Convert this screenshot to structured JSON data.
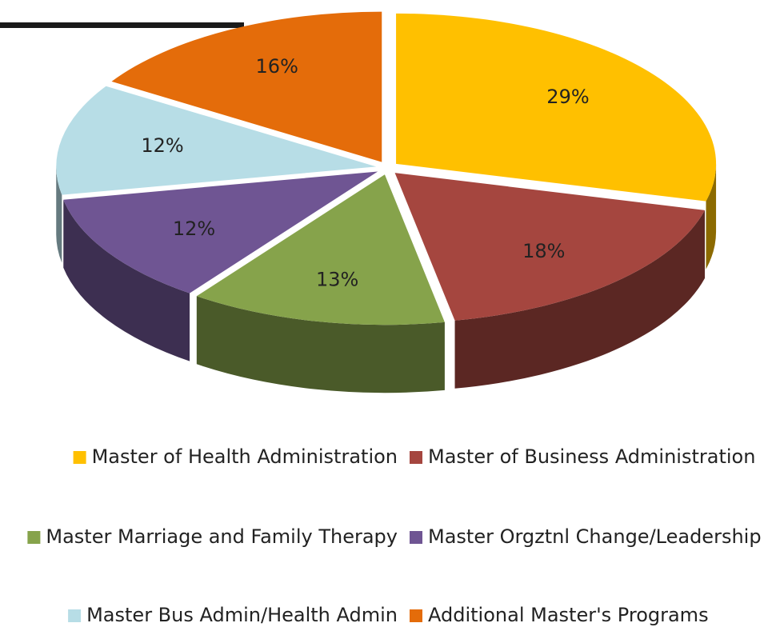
{
  "chart_data": {
    "type": "pie",
    "categories": [
      "Master of Health Administration",
      "Master of Business Administration",
      "Master Marriage and Family Therapy",
      "Master Orgztnl Change/Leadership",
      "Master Bus Admin/Health Admin",
      "Additional Master's Programs"
    ],
    "values": [
      29,
      18,
      13,
      12,
      12,
      16
    ],
    "value_labels": [
      "29%",
      "18%",
      "13%",
      "12%",
      "12%",
      "16%"
    ],
    "colors": [
      "#FFC000",
      "#A5463F",
      "#86A34B",
      "#6F5593",
      "#B7DDE6",
      "#E46C0A"
    ],
    "legend": "bottom"
  }
}
